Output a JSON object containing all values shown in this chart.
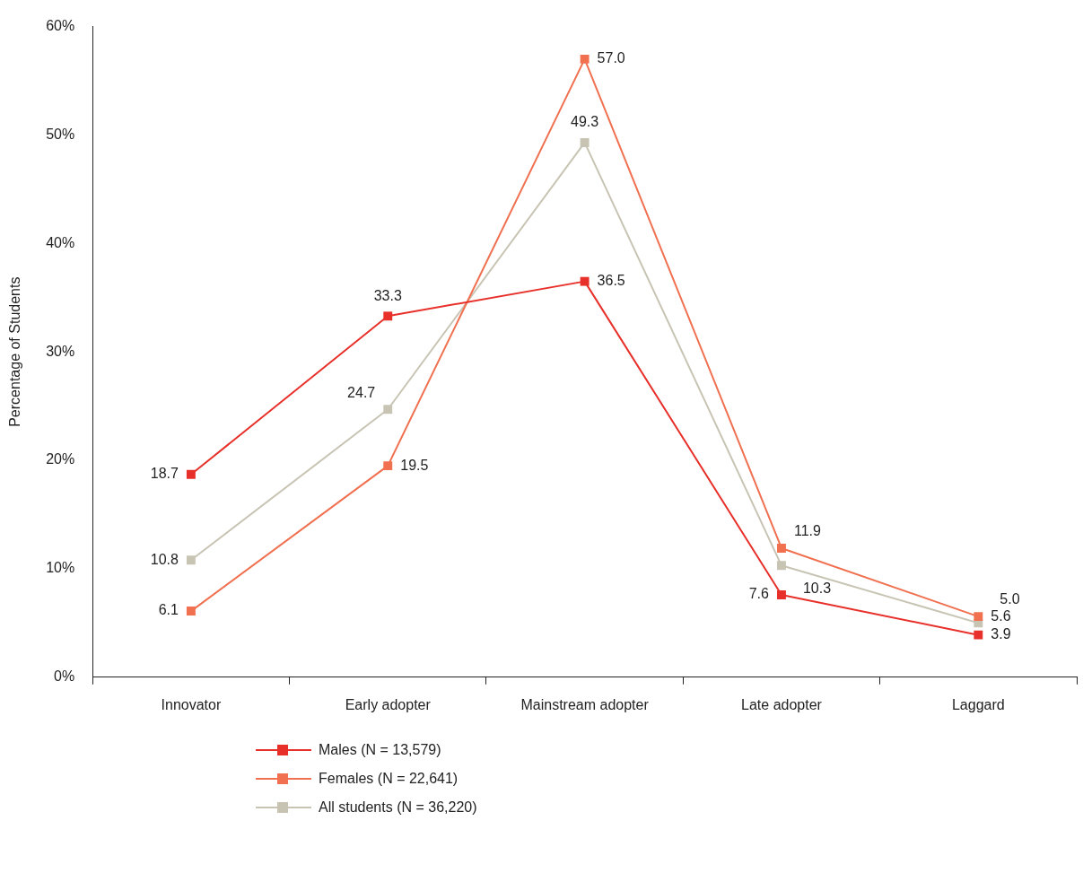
{
  "chart_data": {
    "type": "line",
    "ylabel": "Percentage of Students",
    "categories": [
      "Innovator",
      "Early adopter",
      "Mainstream adopter",
      "Late adopter",
      "Laggard"
    ],
    "series": [
      {
        "name": "Males (N = 13,579)",
        "color": "#e8302a",
        "values": [
          18.7,
          33.3,
          36.5,
          7.6,
          3.9
        ],
        "value_labels": [
          "18.7",
          "33.3",
          "36.5",
          "7.6",
          "3.9"
        ]
      },
      {
        "name": "Females (N = 22,641)",
        "color": "#f07050",
        "values": [
          6.1,
          19.5,
          57.0,
          11.9,
          5.6
        ],
        "value_labels": [
          "6.1",
          "19.5",
          "57.0",
          "11.9",
          "5.6"
        ]
      },
      {
        "name": "All students (N = 36,220)",
        "color": "#c8c4b4",
        "values": [
          10.8,
          24.7,
          49.3,
          10.3,
          5.0
        ],
        "value_labels": [
          "10.8",
          "24.7",
          "49.3",
          "10.3",
          "5.0"
        ]
      }
    ],
    "ylim": [
      0,
      60
    ],
    "yticks": [
      {
        "value": 0,
        "label": "0%"
      },
      {
        "value": 10,
        "label": "10%"
      },
      {
        "value": 20,
        "label": "20%"
      },
      {
        "value": 30,
        "label": "30%"
      },
      {
        "value": 40,
        "label": "40%"
      },
      {
        "value": 50,
        "label": "50%"
      },
      {
        "value": 60,
        "label": "60%"
      }
    ],
    "grid": false,
    "legend": "bottom",
    "marker": "square",
    "line_style": "solid"
  }
}
